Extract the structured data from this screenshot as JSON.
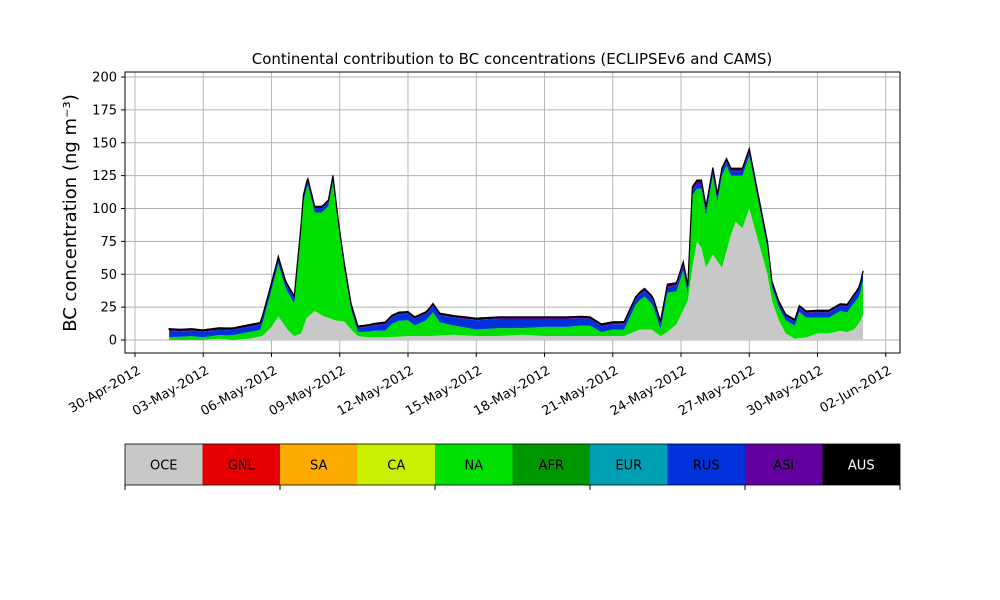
{
  "chart_data": {
    "type": "area",
    "stacked": true,
    "title": "Continental contribution to BC concentrations (ECLIPSEv6 and CAMS)",
    "ylabel": "BC concentration",
    "ylabel_unit": "(ng m⁻³)",
    "xlabel": "",
    "x_unit": "days",
    "x_range_days": [
      -0.5,
      32.0
    ],
    "ylim": [
      -10,
      205
    ],
    "yticks": [
      0,
      25,
      50,
      75,
      100,
      125,
      150,
      175,
      200
    ],
    "xticks": [
      {
        "day": 0,
        "label": "30-Apr-2012"
      },
      {
        "day": 3,
        "label": "03-May-2012"
      },
      {
        "day": 6,
        "label": "06-May-2012"
      },
      {
        "day": 9,
        "label": "09-May-2012"
      },
      {
        "day": 12,
        "label": "12-May-2012"
      },
      {
        "day": 15,
        "label": "15-May-2012"
      },
      {
        "day": 18,
        "label": "18-May-2012"
      },
      {
        "day": 21,
        "label": "21-May-2012"
      },
      {
        "day": 24,
        "label": "24-May-2012"
      },
      {
        "day": 27,
        "label": "27-May-2012"
      },
      {
        "day": 30,
        "label": "30-May-2012"
      },
      {
        "day": 33,
        "label": "02-Jun-2012"
      }
    ],
    "grid": true,
    "legend_placement": "below",
    "series_order": [
      "OCE",
      "GNL",
      "SA",
      "CA",
      "NA",
      "AFR",
      "EUR",
      "RUS",
      "ASI",
      "AUS"
    ],
    "legend": [
      {
        "name": "OCE",
        "color": "#c8c8c8",
        "text_color": "#000000"
      },
      {
        "name": "GNL",
        "color": "#e60000",
        "text_color": "#000000"
      },
      {
        "name": "SA",
        "color": "#ffaa00",
        "text_color": "#000000"
      },
      {
        "name": "CA",
        "color": "#c8f000",
        "text_color": "#000000"
      },
      {
        "name": "NA",
        "color": "#00e000",
        "text_color": "#000000"
      },
      {
        "name": "AFR",
        "color": "#009600",
        "text_color": "#000000"
      },
      {
        "name": "EUR",
        "color": "#00a0b4",
        "text_color": "#000000"
      },
      {
        "name": "RUS",
        "color": "#0032dc",
        "text_color": "#000000"
      },
      {
        "name": "ASI",
        "color": "#6400a0",
        "text_color": "#000000"
      },
      {
        "name": "AUS",
        "color": "#000000",
        "text_color": "#ffffff"
      }
    ],
    "anchors": {
      "OCE": [
        [
          1.5,
          0
        ],
        [
          2.9,
          0
        ],
        [
          3.7,
          1
        ],
        [
          4.3,
          0
        ],
        [
          5.0,
          1
        ],
        [
          5.6,
          3
        ],
        [
          6.0,
          10
        ],
        [
          6.3,
          18
        ],
        [
          6.7,
          8
        ],
        [
          7.0,
          3
        ],
        [
          7.3,
          5
        ],
        [
          7.55,
          17
        ],
        [
          7.9,
          22
        ],
        [
          8.3,
          18
        ],
        [
          8.8,
          15
        ],
        [
          9.2,
          14
        ],
        [
          9.5,
          8
        ],
        [
          9.8,
          3
        ],
        [
          10.3,
          2
        ],
        [
          11,
          2
        ],
        [
          12,
          3
        ],
        [
          13,
          3
        ],
        [
          14,
          4
        ],
        [
          15,
          3
        ],
        [
          16,
          3
        ],
        [
          17,
          4
        ],
        [
          18,
          3
        ],
        [
          19,
          3
        ],
        [
          20,
          3
        ],
        [
          21,
          3
        ],
        [
          21.5,
          3
        ],
        [
          22.2,
          8
        ],
        [
          22.7,
          8
        ],
        [
          23.1,
          3
        ],
        [
          23.4,
          6
        ],
        [
          23.8,
          12
        ],
        [
          24.3,
          30
        ],
        [
          24.5,
          55
        ],
        [
          24.7,
          75
        ],
        [
          24.9,
          70
        ],
        [
          25.1,
          55
        ],
        [
          25.4,
          65
        ],
        [
          25.8,
          55
        ],
        [
          26.2,
          80
        ],
        [
          26.4,
          90
        ],
        [
          26.7,
          85
        ],
        [
          27.0,
          100
        ],
        [
          27.4,
          75
        ],
        [
          27.8,
          50
        ],
        [
          28.0,
          30
        ],
        [
          28.3,
          15
        ],
        [
          28.6,
          5
        ],
        [
          29,
          1
        ],
        [
          29.5,
          2
        ],
        [
          30,
          5
        ],
        [
          30.5,
          5
        ],
        [
          31,
          7
        ],
        [
          31.3,
          6
        ],
        [
          31.6,
          8
        ],
        [
          31.7,
          10
        ],
        [
          31.9,
          15
        ],
        [
          32.0,
          20
        ]
      ],
      "GNL": [
        [
          1.5,
          0
        ],
        [
          32.0,
          0
        ]
      ],
      "SA": [
        [
          1.5,
          0
        ],
        [
          32.0,
          0
        ]
      ],
      "CA": [
        [
          1.5,
          0
        ],
        [
          32.0,
          0
        ]
      ],
      "NA": [
        [
          1.5,
          2
        ],
        [
          2.5,
          3
        ],
        [
          3,
          2
        ],
        [
          4,
          3
        ],
        [
          5,
          5
        ],
        [
          5.5,
          5
        ],
        [
          6.0,
          28
        ],
        [
          6.3,
          40
        ],
        [
          6.6,
          30
        ],
        [
          7.0,
          25
        ],
        [
          7.4,
          95
        ],
        [
          7.6,
          100
        ],
        [
          7.9,
          75
        ],
        [
          8.2,
          78
        ],
        [
          8.5,
          85
        ],
        [
          8.7,
          105
        ],
        [
          8.95,
          70
        ],
        [
          9.2,
          40
        ],
        [
          9.5,
          15
        ],
        [
          9.8,
          3
        ],
        [
          10.5,
          5
        ],
        [
          11,
          5
        ],
        [
          11.3,
          10
        ],
        [
          11.6,
          12
        ],
        [
          12,
          12
        ],
        [
          12.3,
          8
        ],
        [
          12.8,
          12
        ],
        [
          13.1,
          18
        ],
        [
          13.4,
          10
        ],
        [
          14,
          7
        ],
        [
          15,
          5
        ],
        [
          16,
          6
        ],
        [
          17,
          5
        ],
        [
          18,
          7
        ],
        [
          19,
          7
        ],
        [
          19.6,
          8
        ],
        [
          20,
          8
        ],
        [
          20.5,
          3
        ],
        [
          21,
          5
        ],
        [
          21.5,
          5
        ],
        [
          22.0,
          20
        ],
        [
          22.4,
          25
        ],
        [
          22.8,
          18
        ],
        [
          23.1,
          5
        ],
        [
          23.4,
          30
        ],
        [
          23.8,
          25
        ],
        [
          24.1,
          30
        ],
        [
          24.3,
          5
        ],
        [
          24.5,
          55
        ],
        [
          24.7,
          40
        ],
        [
          24.9,
          45
        ],
        [
          25.1,
          40
        ],
        [
          25.4,
          60
        ],
        [
          25.6,
          45
        ],
        [
          25.8,
          70
        ],
        [
          26.0,
          65
        ],
        [
          26.2,
          45
        ],
        [
          26.4,
          35
        ],
        [
          26.7,
          40
        ],
        [
          27.0,
          40
        ],
        [
          27.2,
          35
        ],
        [
          27.4,
          30
        ],
        [
          27.8,
          20
        ],
        [
          28.0,
          10
        ],
        [
          28.3,
          10
        ],
        [
          28.6,
          10
        ],
        [
          29,
          10
        ],
        [
          29.2,
          20
        ],
        [
          29.5,
          15
        ],
        [
          30,
          12
        ],
        [
          30.5,
          12
        ],
        [
          31,
          15
        ],
        [
          31.3,
          15
        ],
        [
          31.6,
          20
        ],
        [
          31.8,
          20
        ],
        [
          32.0,
          25
        ]
      ],
      "AFR": [
        [
          1.5,
          0
        ],
        [
          32.0,
          0
        ]
      ],
      "EUR": [
        [
          1.5,
          0
        ],
        [
          32.0,
          0
        ]
      ],
      "RUS": [
        [
          1.5,
          4
        ],
        [
          4,
          4
        ],
        [
          6,
          4
        ],
        [
          7,
          4
        ],
        [
          8,
          3
        ],
        [
          9,
          3
        ],
        [
          9.8,
          3
        ],
        [
          10.5,
          4
        ],
        [
          11,
          5
        ],
        [
          12,
          5
        ],
        [
          13,
          5
        ],
        [
          14,
          6
        ],
        [
          15,
          7
        ],
        [
          16,
          7
        ],
        [
          17,
          7
        ],
        [
          18,
          6
        ],
        [
          19,
          6
        ],
        [
          20,
          5
        ],
        [
          21,
          4
        ],
        [
          22,
          4
        ],
        [
          23,
          4
        ],
        [
          24,
          4
        ],
        [
          25,
          3
        ],
        [
          26,
          3
        ],
        [
          27,
          3
        ],
        [
          28,
          3
        ],
        [
          29,
          3
        ],
        [
          30,
          4
        ],
        [
          31,
          4
        ],
        [
          31.6,
          5
        ],
        [
          32,
          6
        ]
      ],
      "ASI": [
        [
          1.5,
          2
        ],
        [
          2.0,
          1
        ],
        [
          3,
          1
        ],
        [
          6,
          1
        ],
        [
          7,
          1
        ],
        [
          8,
          1
        ],
        [
          9,
          1
        ],
        [
          10,
          1
        ],
        [
          12,
          1
        ],
        [
          16,
          1
        ],
        [
          20,
          1
        ],
        [
          24,
          2
        ],
        [
          25,
          3
        ],
        [
          26,
          2
        ],
        [
          27,
          2
        ],
        [
          28,
          1
        ],
        [
          29,
          1
        ],
        [
          30,
          1
        ],
        [
          31,
          1
        ],
        [
          32,
          1
        ]
      ],
      "AUS": [
        [
          1.5,
          0.6
        ],
        [
          32.0,
          0.6
        ]
      ]
    }
  }
}
